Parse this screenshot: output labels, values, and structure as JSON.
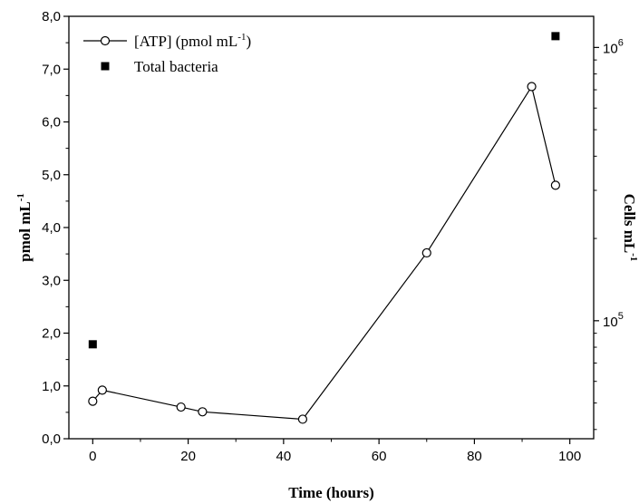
{
  "chart_data": {
    "type": "line",
    "title": "",
    "xlabel": "Time (hours)",
    "ylabel_left": {
      "base": "pmol mL",
      "sup": "-1"
    },
    "ylabel_right": {
      "base": "Cells mL",
      "sup": "-1"
    },
    "xlim": [
      -5,
      105
    ],
    "ylim_left": [
      0,
      8
    ],
    "ylim_right": [
      37000,
      1300000
    ],
    "right_scale": "log",
    "grid": false,
    "legend_position": "top-left",
    "x_ticks": [
      0,
      20,
      40,
      60,
      80,
      100
    ],
    "x_tick_labels": [
      "0",
      "20",
      "40",
      "60",
      "80",
      "100"
    ],
    "y_ticks_left": [
      0,
      1,
      2,
      3,
      4,
      5,
      6,
      7,
      8
    ],
    "y_tick_labels_left": [
      "0,0",
      "1,0",
      "2,0",
      "3,0",
      "4,0",
      "5,0",
      "6,0",
      "7,0",
      "8,0"
    ],
    "y_ticks_right": [
      100000,
      1000000
    ],
    "y_tick_labels_right": [
      {
        "base": "10",
        "sup": "5"
      },
      {
        "base": "10",
        "sup": "6"
      }
    ],
    "series": [
      {
        "name": {
          "prefix": "[ATP] (pmol mL",
          "sup": "-1",
          "suffix": ")"
        },
        "axis": "left",
        "marker": "open-circle",
        "line": true,
        "x": [
          0,
          2,
          18.5,
          23,
          44,
          70,
          92,
          97
        ],
        "y": [
          0.71,
          0.92,
          0.6,
          0.51,
          0.37,
          3.52,
          6.67,
          4.8
        ]
      },
      {
        "name": "Total bacteria",
        "axis": "right",
        "marker": "filled-square",
        "line": false,
        "x": [
          0,
          97
        ],
        "y": [
          82000,
          1100000
        ]
      }
    ]
  }
}
